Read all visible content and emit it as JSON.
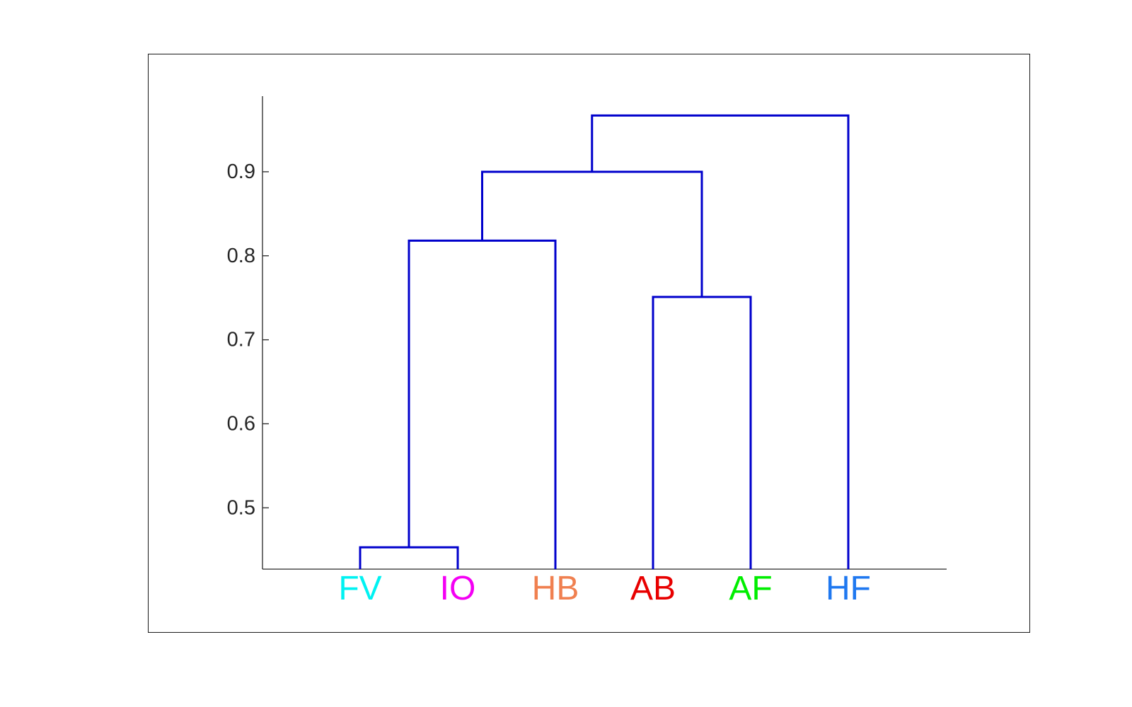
{
  "chart_data": {
    "type": "dendrogram",
    "title": "",
    "xlabel": "",
    "ylabel": "",
    "ylim": [
      0.427,
      0.99
    ],
    "yticks": [
      0.5,
      0.6,
      0.7,
      0.8,
      0.9
    ],
    "ytick_labels": [
      "0.5",
      "0.6",
      "0.7",
      "0.8",
      "0.9"
    ],
    "leaves": [
      {
        "label": "FV",
        "color": "#00f2f2"
      },
      {
        "label": "IO",
        "color": "#f400f4"
      },
      {
        "label": "HB",
        "color": "#f08050"
      },
      {
        "label": "AB",
        "color": "#e80000"
      },
      {
        "label": "AF",
        "color": "#00ee00"
      },
      {
        "label": "HF",
        "color": "#1f78f0"
      }
    ],
    "merges": [
      {
        "left": "FV",
        "right": "IO",
        "height": 0.453
      },
      {
        "left": "FV+IO",
        "right": "HB",
        "height": 0.818
      },
      {
        "left": "AB",
        "right": "AF",
        "height": 0.751
      },
      {
        "left": "FV+IO+HB",
        "right": "AB+AF",
        "height": 0.9
      },
      {
        "left": "FV+IO+HB+AB+AF",
        "right": "HF",
        "height": 0.967
      }
    ],
    "link_color": "#0000cc",
    "grid": false
  }
}
